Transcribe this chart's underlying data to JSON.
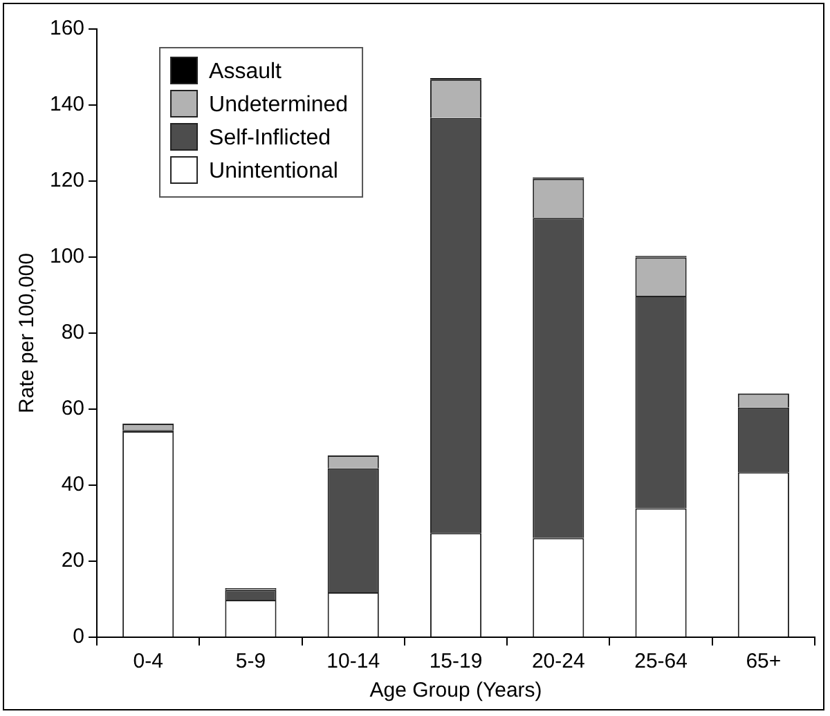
{
  "chart_data": {
    "type": "bar",
    "stacked": true,
    "xlabel": "Age Group (Years)",
    "ylabel": "Rate per 100,000",
    "categories": [
      "0-4",
      "5-9",
      "10-14",
      "15-19",
      "20-24",
      "25-64",
      "65+"
    ],
    "series": [
      {
        "name": "Unintentional",
        "color": "#ffffff",
        "values": [
          54.2,
          9.8,
          11.8,
          27.4,
          26.1,
          33.9,
          43.4
        ]
      },
      {
        "name": "Self-Inflicted",
        "color": "#4d4d4d",
        "values": [
          0.3,
          2.7,
          32.6,
          109.2,
          84.2,
          55.9,
          17.0
        ]
      },
      {
        "name": "Undetermined",
        "color": "#b2b2b2",
        "values": [
          1.7,
          0.4,
          3.4,
          10.1,
          10.3,
          10.1,
          3.7
        ]
      },
      {
        "name": "Assault",
        "color": "#000000",
        "values": [
          0,
          0,
          0,
          0.4,
          0.4,
          0.4,
          0.1
        ]
      }
    ],
    "ylim": [
      0,
      160
    ],
    "yticks": [
      0,
      20,
      40,
      60,
      80,
      100,
      120,
      140,
      160
    ],
    "grid": false,
    "legend": "top left"
  }
}
